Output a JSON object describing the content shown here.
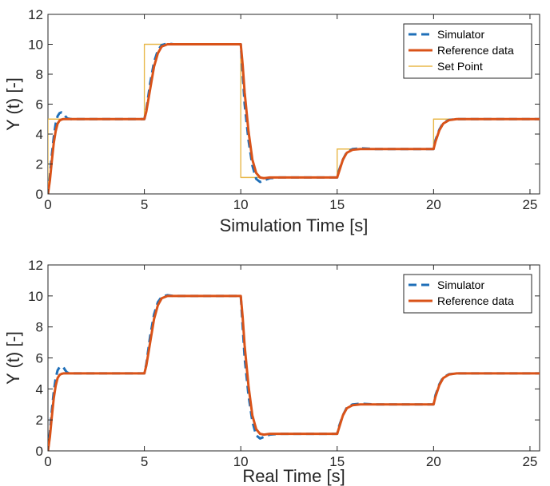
{
  "chart_data": [
    {
      "type": "line",
      "xlabel": "Simulation Time [s]",
      "ylabel": "Y (t) [-]",
      "xlim": [
        0,
        25.5
      ],
      "ylim": [
        0,
        12
      ],
      "xticks": [
        0,
        5,
        10,
        15,
        20,
        25
      ],
      "yticks": [
        0,
        2,
        4,
        6,
        8,
        10,
        12
      ],
      "xtick_labels": [
        "0",
        "5",
        "10",
        "15",
        "20",
        "25"
      ],
      "ytick_labels": [
        "0",
        "2",
        "4",
        "6",
        "8",
        "10",
        "12"
      ],
      "grid": false,
      "legend_position": "top-right",
      "series": [
        {
          "name": "Simulator",
          "style": "dashed",
          "color": "#1f6fb8",
          "x": [
            0,
            0.1,
            0.2,
            0.3,
            0.4,
            0.5,
            0.6,
            0.7,
            0.8,
            0.9,
            1.0,
            1.2,
            1.5,
            2,
            3,
            4,
            5,
            5.1,
            5.3,
            5.5,
            5.7,
            5.9,
            6.2,
            6.5,
            7,
            8,
            9,
            10,
            10.1,
            10.2,
            10.4,
            10.6,
            10.8,
            11.0,
            11.2,
            11.5,
            12,
            13,
            14,
            15,
            15.1,
            15.3,
            15.5,
            15.8,
            16.2,
            17,
            18,
            19,
            20,
            20.1,
            20.3,
            20.5,
            20.8,
            21.2,
            22,
            23,
            24,
            25.5
          ],
          "y": [
            0,
            1.2,
            2.6,
            3.8,
            4.7,
            5.2,
            5.4,
            5.45,
            5.4,
            5.2,
            5.05,
            5.0,
            5.0,
            5.0,
            5.0,
            5.0,
            5.0,
            5.6,
            7.4,
            8.8,
            9.6,
            9.95,
            10.05,
            10.0,
            10.0,
            10.0,
            10.0,
            10.0,
            8.0,
            6.0,
            3.6,
            1.9,
            1.0,
            0.8,
            0.9,
            1.05,
            1.1,
            1.1,
            1.1,
            1.1,
            1.6,
            2.3,
            2.8,
            3.0,
            3.05,
            3.0,
            3.0,
            3.0,
            3.0,
            3.6,
            4.3,
            4.75,
            4.95,
            5.0,
            5.0,
            5.0,
            5.0,
            5.0
          ]
        },
        {
          "name": "Reference data",
          "style": "solid",
          "color": "#d95319",
          "x": [
            0,
            0.1,
            0.2,
            0.3,
            0.4,
            0.5,
            0.6,
            0.7,
            0.8,
            0.9,
            1.0,
            1.2,
            1.5,
            2,
            3,
            4,
            5,
            5.1,
            5.3,
            5.5,
            5.7,
            5.9,
            6.2,
            6.5,
            7,
            8,
            9,
            10,
            10.1,
            10.2,
            10.4,
            10.6,
            10.8,
            11.0,
            11.2,
            11.5,
            12,
            13,
            14,
            15,
            15.1,
            15.3,
            15.5,
            15.8,
            16.2,
            17,
            18,
            19,
            20,
            20.1,
            20.3,
            20.5,
            20.8,
            21.2,
            22,
            23,
            24,
            25.5
          ],
          "y": [
            0,
            0.9,
            2.2,
            3.4,
            4.2,
            4.7,
            4.9,
            4.97,
            5.0,
            5.0,
            5.0,
            5.0,
            5.0,
            5.0,
            5.0,
            5.0,
            5.0,
            5.5,
            7.0,
            8.5,
            9.4,
            9.85,
            10.0,
            10.0,
            10.0,
            10.0,
            10.0,
            10.0,
            8.6,
            6.8,
            4.2,
            2.3,
            1.4,
            1.1,
            1.05,
            1.1,
            1.1,
            1.1,
            1.1,
            1.1,
            1.5,
            2.3,
            2.75,
            2.95,
            3.0,
            3.0,
            3.0,
            3.0,
            3.0,
            3.5,
            4.25,
            4.7,
            4.93,
            5.0,
            5.0,
            5.0,
            5.0,
            5.0
          ]
        },
        {
          "name": "Set Point",
          "style": "step",
          "color": "#e8b84a",
          "x": [
            0,
            0,
            5,
            5,
            10,
            10,
            15,
            15,
            20,
            20,
            25.5
          ],
          "y": [
            0,
            5,
            5,
            10,
            10,
            1.1,
            1.1,
            3,
            3,
            5,
            5
          ]
        }
      ]
    },
    {
      "type": "line",
      "xlabel": "Real Time [s]",
      "ylabel": "Y (t) [-]",
      "xlim": [
        0,
        25.5
      ],
      "ylim": [
        0,
        12
      ],
      "xticks": [
        0,
        5,
        10,
        15,
        20,
        25
      ],
      "yticks": [
        0,
        2,
        4,
        6,
        8,
        10,
        12
      ],
      "xtick_labels": [
        "0",
        "5",
        "10",
        "15",
        "20",
        "25"
      ],
      "ytick_labels": [
        "0",
        "2",
        "4",
        "6",
        "8",
        "10",
        "12"
      ],
      "grid": false,
      "legend_position": "top-right",
      "series": [
        {
          "name": "Simulator",
          "style": "dashed",
          "color": "#1f6fb8",
          "x": [
            0,
            0.1,
            0.2,
            0.3,
            0.4,
            0.5,
            0.6,
            0.7,
            0.8,
            0.9,
            1.0,
            1.2,
            1.5,
            2,
            3,
            4,
            5,
            5.1,
            5.3,
            5.5,
            5.7,
            5.9,
            6.2,
            6.5,
            7,
            8,
            9,
            10,
            10.1,
            10.2,
            10.4,
            10.6,
            10.8,
            11.0,
            11.2,
            11.5,
            12,
            13,
            14,
            15,
            15.1,
            15.3,
            15.5,
            15.8,
            16.2,
            17,
            18,
            19,
            20,
            20.1,
            20.3,
            20.5,
            20.8,
            21.2,
            22,
            23,
            24,
            25.5
          ],
          "y": [
            0,
            1.2,
            2.6,
            3.8,
            4.7,
            5.2,
            5.4,
            5.45,
            5.4,
            5.2,
            5.05,
            5.0,
            5.0,
            5.0,
            5.0,
            5.0,
            5.0,
            5.6,
            7.4,
            8.8,
            9.6,
            9.95,
            10.05,
            10.0,
            10.0,
            10.0,
            10.0,
            10.0,
            8.0,
            6.0,
            3.6,
            1.9,
            1.0,
            0.8,
            0.9,
            1.05,
            1.1,
            1.1,
            1.1,
            1.1,
            1.6,
            2.3,
            2.8,
            3.0,
            3.05,
            3.0,
            3.0,
            3.0,
            3.0,
            3.6,
            4.3,
            4.75,
            4.95,
            5.0,
            5.0,
            5.0,
            5.0,
            5.0
          ]
        },
        {
          "name": "Reference data",
          "style": "solid",
          "color": "#d95319",
          "x": [
            0,
            0.1,
            0.2,
            0.3,
            0.4,
            0.5,
            0.6,
            0.7,
            0.8,
            0.9,
            1.0,
            1.2,
            1.5,
            2,
            3,
            4,
            5,
            5.1,
            5.3,
            5.5,
            5.7,
            5.9,
            6.2,
            6.5,
            7,
            8,
            9,
            10,
            10.1,
            10.2,
            10.4,
            10.6,
            10.8,
            11.0,
            11.2,
            11.5,
            12,
            13,
            14,
            15,
            15.1,
            15.3,
            15.5,
            15.8,
            16.2,
            17,
            18,
            19,
            20,
            20.1,
            20.3,
            20.5,
            20.8,
            21.2,
            22,
            23,
            24,
            25.5
          ],
          "y": [
            0,
            0.9,
            2.2,
            3.4,
            4.2,
            4.7,
            4.9,
            4.97,
            5.0,
            5.0,
            5.0,
            5.0,
            5.0,
            5.0,
            5.0,
            5.0,
            5.0,
            5.5,
            7.0,
            8.5,
            9.4,
            9.85,
            10.0,
            10.0,
            10.0,
            10.0,
            10.0,
            10.0,
            8.6,
            6.8,
            4.2,
            2.3,
            1.4,
            1.1,
            1.05,
            1.1,
            1.1,
            1.1,
            1.1,
            1.1,
            1.5,
            2.3,
            2.75,
            2.95,
            3.0,
            3.0,
            3.0,
            3.0,
            3.0,
            3.5,
            4.25,
            4.7,
            4.93,
            5.0,
            5.0,
            5.0,
            5.0,
            5.0
          ]
        }
      ]
    }
  ]
}
